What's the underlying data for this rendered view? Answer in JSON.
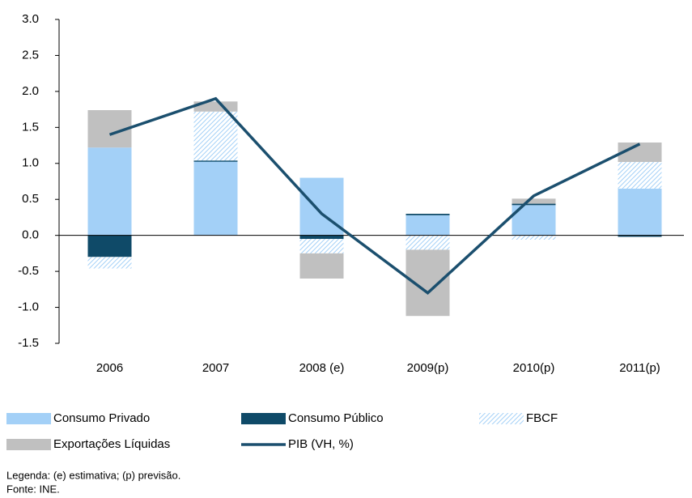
{
  "chart_data": {
    "type": "bar",
    "stacked": true,
    "categories": [
      "2006",
      "2007",
      "2008 (e)",
      "2009(p)",
      "2010(p)",
      "2011(p)"
    ],
    "series": [
      {
        "name": "Consumo Privado",
        "type": "bar",
        "color": "#a3d0f7",
        "values": [
          1.22,
          1.04,
          0.8,
          0.28,
          0.42,
          0.65
        ]
      },
      {
        "name": "Consumo Público",
        "type": "bar",
        "color": "#0f4a68",
        "values": [
          -0.3,
          0.0,
          -0.05,
          0.02,
          0.02,
          -0.02
        ]
      },
      {
        "name": "FBCF",
        "type": "bar",
        "color": "#a3d0f7",
        "pattern": "hatch",
        "values": [
          -0.16,
          0.68,
          -0.2,
          -0.2,
          -0.06,
          0.37
        ]
      },
      {
        "name": "Exportações Líquidas",
        "type": "bar",
        "color": "#c0c0c0",
        "values": [
          0.52,
          0.14,
          -0.35,
          -0.92,
          0.07,
          0.27
        ]
      },
      {
        "name": "PIB (VH, %)",
        "type": "line",
        "color": "#1b4f6e",
        "values": [
          1.4,
          1.9,
          0.3,
          -0.8,
          0.55,
          1.27
        ]
      }
    ],
    "ylim": [
      -1.5,
      3.0
    ],
    "yticks": [
      {
        "value": -1.5,
        "label": "-1.5"
      },
      {
        "value": -1.0,
        "label": "-1.0"
      },
      {
        "value": -0.5,
        "label": "-0.5"
      },
      {
        "value": 0,
        "label": "0.0"
      },
      {
        "value": 0.5,
        "label": "0.5"
      },
      {
        "value": 1.0,
        "label": "1.0"
      },
      {
        "value": 1.5,
        "label": "1.5"
      },
      {
        "value": 2.0,
        "label": "2.0"
      },
      {
        "value": 2.5,
        "label": "2.5"
      },
      {
        "value": 3.0,
        "label": "3.0"
      }
    ],
    "notes": [
      "Legenda: (e) estimativa; (p) previsão.",
      "Fonte: INE."
    ]
  }
}
